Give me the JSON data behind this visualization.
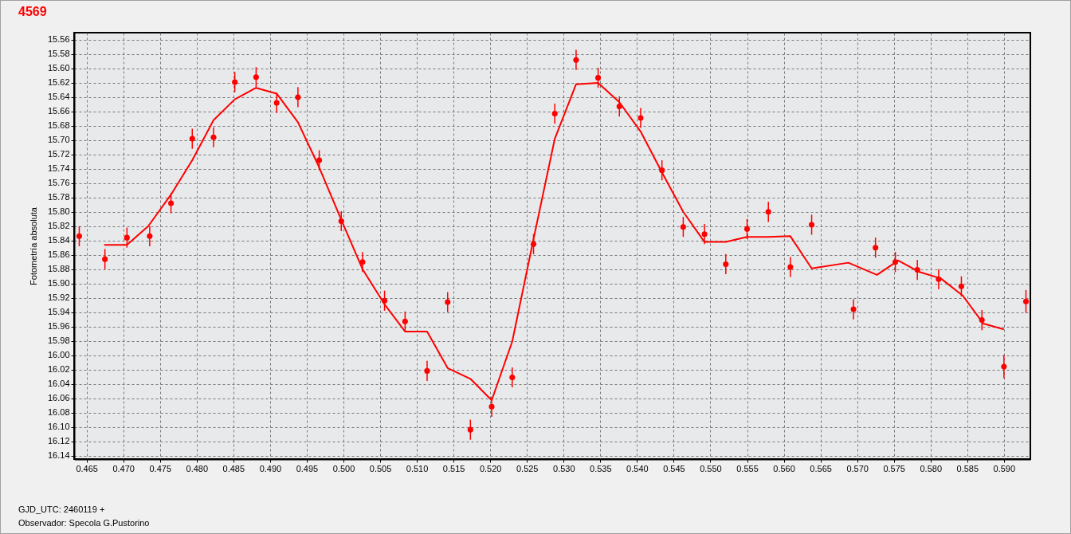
{
  "chart_data": {
    "type": "scatter",
    "title": "4569",
    "ylabel": "Fotometría absoluta",
    "annotations": [
      "GJD_UTC: 2460119 +",
      "Observador: Specola G.Pustorino"
    ],
    "xlim": [
      0.4633,
      0.5936
    ],
    "ylim": [
      16.145,
      15.55
    ],
    "xticks": [
      0.465,
      {
        "value": 0.47,
        "label": "0.470"
      },
      0.475,
      {
        "value": 0.48,
        "label": "0.480"
      },
      0.485,
      {
        "value": 0.49,
        "label": "0.490"
      },
      0.495,
      {
        "value": 0.5,
        "label": "0.500"
      },
      0.505,
      {
        "value": 0.51,
        "label": "0.510"
      },
      0.515,
      {
        "value": 0.52,
        "label": "0.520"
      },
      0.525,
      {
        "value": 0.53,
        "label": "0.530"
      },
      0.535,
      {
        "value": 0.54,
        "label": "0.540"
      },
      0.545,
      {
        "value": 0.55,
        "label": "0.550"
      },
      0.555,
      {
        "value": 0.56,
        "label": "0.560"
      },
      0.565,
      {
        "value": 0.57,
        "label": "0.570"
      },
      0.575,
      {
        "value": 0.58,
        "label": "0.580"
      },
      0.585,
      {
        "value": 0.59,
        "label": "0.590"
      }
    ],
    "yticks": [
      15.56,
      15.58,
      {
        "value": 15.6,
        "label": "15.60"
      },
      15.62,
      15.64,
      15.66,
      15.68,
      {
        "value": 15.7,
        "label": "15.70"
      },
      15.72,
      15.74,
      15.76,
      15.78,
      {
        "value": 15.8,
        "label": "15.80"
      },
      15.82,
      15.84,
      15.86,
      15.88,
      {
        "value": 15.9,
        "label": "15.90"
      },
      15.92,
      15.94,
      15.96,
      15.98,
      {
        "value": 16,
        "label": "16.00"
      },
      16.02,
      16.04,
      16.06,
      16.08,
      {
        "value": 16.1,
        "label": "16.10"
      },
      16.12,
      16.14
    ],
    "grid": true,
    "line_style": "solid",
    "series": [
      {
        "marker": "circle",
        "color": "#ff0000",
        "x": [
          0.464,
          0.4675,
          0.4705,
          0.4736,
          0.4765,
          0.4794,
          0.4823,
          0.4852,
          0.4881,
          0.4909,
          0.4938,
          0.4967,
          0.4997,
          0.5026,
          0.5056,
          0.5084,
          0.5114,
          0.5142,
          0.5173,
          0.5202,
          0.523,
          0.5259,
          0.5288,
          0.5317,
          0.5347,
          0.5376,
          0.5405,
          0.5434,
          0.5463,
          0.5492,
          0.5521,
          0.555,
          0.5579,
          0.5609,
          0.5638,
          0.5695,
          0.5725,
          0.5752,
          0.5782,
          0.5811,
          0.5842,
          0.587,
          0.59,
          0.593
        ],
        "values": [
          15.834,
          15.866,
          15.836,
          15.834,
          15.788,
          15.698,
          15.696,
          15.619,
          15.612,
          15.648,
          15.64,
          15.728,
          15.813,
          15.87,
          15.924,
          15.953,
          16.022,
          15.926,
          16.104,
          16.072,
          16.031,
          15.845,
          15.663,
          15.588,
          15.613,
          15.653,
          15.669,
          15.742,
          15.821,
          15.831,
          15.873,
          15.824,
          15.8,
          15.877,
          15.818,
          15.936,
          15.85,
          15.87,
          15.881,
          15.894,
          15.904,
          15.951,
          16.016,
          15.925
        ],
        "errors": [
          0.014,
          0.014,
          0.014,
          0.014,
          0.014,
          0.014,
          0.014,
          0.014,
          0.014,
          0.014,
          0.014,
          0.014,
          0.014,
          0.014,
          0.014,
          0.014,
          0.014,
          0.014,
          0.014,
          0.014,
          0.014,
          0.014,
          0.014,
          0.014,
          0.014,
          0.014,
          0.014,
          0.014,
          0.014,
          0.014,
          0.014,
          0.014,
          0.014,
          0.014,
          0.014,
          0.014,
          0.014,
          0.014,
          0.014,
          0.014,
          0.014,
          0.014,
          0.016,
          0.016
        ]
      },
      {
        "type": "line",
        "marker": "none",
        "color": "#ff0000",
        "x": [
          0.4674,
          0.4705,
          0.4734,
          0.4765,
          0.4794,
          0.4823,
          0.4852,
          0.4881,
          0.4909,
          0.4938,
          0.4967,
          0.4997,
          0.5026,
          0.5056,
          0.5084,
          0.5114,
          0.5142,
          0.5173,
          0.5202,
          0.523,
          0.5259,
          0.5288,
          0.5317,
          0.5347,
          0.5376,
          0.5405,
          0.5434,
          0.5463,
          0.5492,
          0.5521,
          0.555,
          0.5579,
          0.5609,
          0.5638,
          0.5688,
          0.5727,
          0.5756,
          0.5785,
          0.5814,
          0.5844,
          0.5872,
          0.59
        ],
        "values": [
          15.846,
          15.846,
          15.82,
          15.776,
          15.728,
          15.672,
          15.643,
          15.627,
          15.635,
          15.675,
          15.738,
          15.811,
          15.88,
          15.929,
          15.967,
          15.967,
          16.018,
          16.033,
          16.063,
          15.981,
          15.838,
          15.698,
          15.622,
          15.62,
          15.647,
          15.688,
          15.745,
          15.8,
          15.842,
          15.842,
          15.835,
          15.835,
          15.834,
          15.879,
          15.871,
          15.888,
          15.868,
          15.884,
          15.893,
          15.917,
          15.956,
          15.964
        ]
      }
    ]
  }
}
